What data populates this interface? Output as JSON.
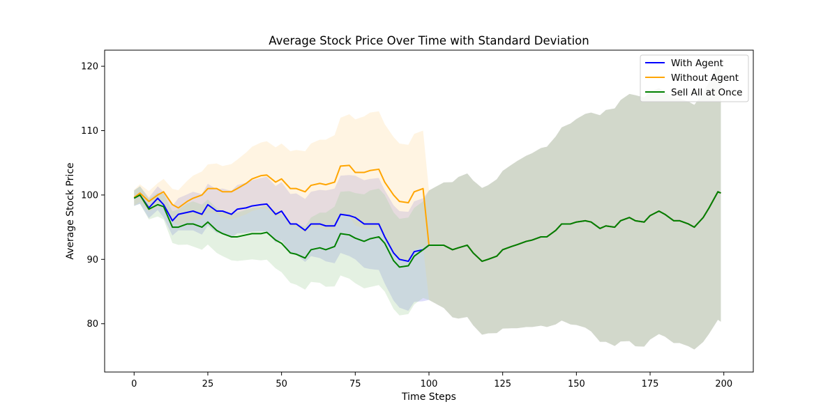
{
  "chart_data": {
    "type": "line",
    "title": "Average Stock Price Over Time with Standard Deviation",
    "xlabel": "Time Steps",
    "ylabel": "Average Stock Price",
    "xlim": [
      -10,
      210
    ],
    "ylim": [
      72.5,
      122.5
    ],
    "xticks": [
      0,
      25,
      50,
      75,
      100,
      125,
      150,
      175,
      200
    ],
    "yticks": [
      80,
      90,
      100,
      110,
      120
    ],
    "grid": false,
    "legend_position": "upper right",
    "series": [
      {
        "name": "With Agent",
        "color": "#0000ff",
        "band_color": "#8a8af0",
        "points": [
          [
            0,
            99.5
          ],
          [
            2,
            100
          ],
          [
            5,
            98
          ],
          [
            8,
            99.5
          ],
          [
            10,
            98.5
          ],
          [
            13,
            96
          ],
          [
            15,
            97
          ],
          [
            20,
            97.5
          ],
          [
            23,
            97
          ],
          [
            25,
            98.5
          ],
          [
            28,
            97.5
          ],
          [
            30,
            97.5
          ],
          [
            33,
            97
          ],
          [
            35,
            97.8
          ],
          [
            38,
            98
          ],
          [
            40,
            98.3
          ],
          [
            43,
            98.5
          ],
          [
            45,
            98.6
          ],
          [
            48,
            97
          ],
          [
            50,
            97.5
          ],
          [
            53,
            95.5
          ],
          [
            55,
            95.5
          ],
          [
            58,
            94.5
          ],
          [
            60,
            95.5
          ],
          [
            63,
            95.5
          ],
          [
            65,
            95.2
          ],
          [
            68,
            95.2
          ],
          [
            70,
            97
          ],
          [
            73,
            96.8
          ],
          [
            75,
            96.5
          ],
          [
            78,
            95.5
          ],
          [
            80,
            95.5
          ],
          [
            83,
            95.5
          ],
          [
            85,
            93.5
          ],
          [
            88,
            91
          ],
          [
            90,
            90
          ],
          [
            93,
            89.7
          ],
          [
            95,
            91.2
          ],
          [
            98,
            91.5
          ],
          [
            100,
            92.2
          ],
          [
            103,
            92.2
          ],
          [
            105,
            92.2
          ],
          [
            108,
            91.5
          ],
          [
            110,
            91.8
          ],
          [
            113,
            92.2
          ],
          [
            115,
            91
          ],
          [
            118,
            89.7
          ],
          [
            120,
            90
          ],
          [
            123,
            90.5
          ],
          [
            125,
            91.5
          ],
          [
            128,
            92
          ],
          [
            130,
            92.3
          ],
          [
            133,
            92.8
          ],
          [
            135,
            93
          ],
          [
            138,
            93.5
          ],
          [
            140,
            93.5
          ],
          [
            143,
            94.5
          ],
          [
            145,
            95.5
          ],
          [
            148,
            95.5
          ],
          [
            150,
            95.8
          ],
          [
            153,
            96
          ],
          [
            155,
            95.8
          ],
          [
            158,
            94.8
          ],
          [
            160,
            95.2
          ],
          [
            163,
            95
          ],
          [
            165,
            96
          ],
          [
            168,
            96.5
          ],
          [
            170,
            96
          ],
          [
            173,
            95.8
          ],
          [
            175,
            96.8
          ],
          [
            178,
            97.5
          ],
          [
            180,
            97
          ],
          [
            183,
            96
          ],
          [
            185,
            96
          ],
          [
            188,
            95.5
          ],
          [
            190,
            95
          ],
          [
            193,
            96.5
          ],
          [
            195,
            98
          ],
          [
            198,
            100.5
          ],
          [
            199,
            100.3
          ]
        ],
        "std": [
          [
            0,
            1.2
          ],
          [
            10,
            2
          ],
          [
            20,
            3
          ],
          [
            30,
            3.5
          ],
          [
            40,
            4
          ],
          [
            50,
            4.5
          ],
          [
            60,
            5
          ],
          [
            70,
            6
          ],
          [
            80,
            7
          ],
          [
            90,
            7.5
          ],
          [
            98,
            8
          ],
          [
            100,
            8.5
          ],
          [
            110,
            11
          ],
          [
            120,
            11.5
          ],
          [
            130,
            13
          ],
          [
            140,
            14
          ],
          [
            150,
            16
          ],
          [
            160,
            18
          ],
          [
            170,
            19.5
          ],
          [
            180,
            19
          ],
          [
            190,
            19
          ],
          [
            199,
            20
          ]
        ]
      },
      {
        "name": "Without Agent",
        "color": "#ffa500",
        "band_color": "#ffd9a0",
        "points": [
          [
            0,
            99.6
          ],
          [
            2,
            100.3
          ],
          [
            5,
            99
          ],
          [
            8,
            100
          ],
          [
            10,
            100.5
          ],
          [
            13,
            98.5
          ],
          [
            15,
            98
          ],
          [
            18,
            99
          ],
          [
            20,
            99.5
          ],
          [
            23,
            100
          ],
          [
            25,
            101
          ],
          [
            28,
            101
          ],
          [
            30,
            100.5
          ],
          [
            33,
            100.5
          ],
          [
            35,
            101
          ],
          [
            38,
            101.8
          ],
          [
            40,
            102.5
          ],
          [
            43,
            103
          ],
          [
            45,
            103.1
          ],
          [
            48,
            102
          ],
          [
            50,
            102.5
          ],
          [
            53,
            101
          ],
          [
            55,
            101
          ],
          [
            58,
            100.5
          ],
          [
            60,
            101.5
          ],
          [
            63,
            101.8
          ],
          [
            65,
            101.6
          ],
          [
            68,
            102
          ],
          [
            70,
            104.5
          ],
          [
            73,
            104.6
          ],
          [
            75,
            103.5
          ],
          [
            78,
            103.5
          ],
          [
            80,
            103.8
          ],
          [
            83,
            104
          ],
          [
            85,
            102
          ],
          [
            88,
            100
          ],
          [
            90,
            99
          ],
          [
            93,
            98.8
          ],
          [
            95,
            100.5
          ],
          [
            98,
            101
          ],
          [
            100,
            92.2
          ],
          [
            103,
            92.2
          ],
          [
            105,
            92.2
          ],
          [
            108,
            91.5
          ],
          [
            110,
            91.8
          ],
          [
            113,
            92.2
          ],
          [
            115,
            91
          ],
          [
            118,
            89.7
          ],
          [
            120,
            90
          ],
          [
            123,
            90.5
          ],
          [
            125,
            91.5
          ],
          [
            128,
            92
          ],
          [
            130,
            92.3
          ],
          [
            133,
            92.8
          ],
          [
            135,
            93
          ],
          [
            138,
            93.5
          ],
          [
            140,
            93.5
          ],
          [
            143,
            94.5
          ],
          [
            145,
            95.5
          ],
          [
            148,
            95.5
          ],
          [
            150,
            95.8
          ],
          [
            153,
            96
          ],
          [
            155,
            95.8
          ],
          [
            158,
            94.8
          ],
          [
            160,
            95.2
          ],
          [
            163,
            95
          ],
          [
            165,
            96
          ],
          [
            168,
            96.5
          ],
          [
            170,
            96
          ],
          [
            173,
            95.8
          ],
          [
            175,
            96.8
          ],
          [
            178,
            97.5
          ],
          [
            180,
            97
          ],
          [
            183,
            96
          ],
          [
            185,
            96
          ],
          [
            188,
            95.5
          ],
          [
            190,
            95
          ],
          [
            193,
            96.5
          ],
          [
            195,
            98
          ],
          [
            198,
            100.5
          ],
          [
            199,
            100.3
          ]
        ],
        "std": [
          [
            0,
            1.2
          ],
          [
            10,
            2
          ],
          [
            20,
            3.5
          ],
          [
            30,
            4
          ],
          [
            40,
            5
          ],
          [
            50,
            5.5
          ],
          [
            60,
            6.5
          ],
          [
            70,
            7.5
          ],
          [
            80,
            9
          ],
          [
            90,
            9
          ],
          [
            98,
            9
          ],
          [
            100,
            8.5
          ],
          [
            110,
            11
          ],
          [
            120,
            11.5
          ],
          [
            130,
            13
          ],
          [
            140,
            14
          ],
          [
            150,
            16
          ],
          [
            160,
            18
          ],
          [
            170,
            19.5
          ],
          [
            180,
            19
          ],
          [
            190,
            19
          ],
          [
            199,
            20
          ]
        ]
      },
      {
        "name": "Sell All at Once",
        "color": "#008000",
        "band_color": "#a6cf9f",
        "points": [
          [
            0,
            99.5
          ],
          [
            2,
            100
          ],
          [
            5,
            97.8
          ],
          [
            8,
            98.5
          ],
          [
            10,
            98.2
          ],
          [
            13,
            95
          ],
          [
            15,
            95
          ],
          [
            18,
            95.5
          ],
          [
            20,
            95.5
          ],
          [
            23,
            95
          ],
          [
            25,
            95.8
          ],
          [
            28,
            94.5
          ],
          [
            30,
            94
          ],
          [
            33,
            93.5
          ],
          [
            35,
            93.5
          ],
          [
            38,
            93.8
          ],
          [
            40,
            94
          ],
          [
            43,
            94
          ],
          [
            45,
            94.2
          ],
          [
            48,
            93
          ],
          [
            50,
            92.5
          ],
          [
            53,
            91
          ],
          [
            55,
            90.8
          ],
          [
            58,
            90.2
          ],
          [
            60,
            91.5
          ],
          [
            63,
            91.8
          ],
          [
            65,
            91.5
          ],
          [
            68,
            92
          ],
          [
            70,
            94
          ],
          [
            73,
            93.8
          ],
          [
            75,
            93.3
          ],
          [
            78,
            92.8
          ],
          [
            80,
            93.2
          ],
          [
            83,
            93.5
          ],
          [
            85,
            92.5
          ],
          [
            88,
            89.8
          ],
          [
            90,
            88.8
          ],
          [
            93,
            89
          ],
          [
            95,
            90.5
          ],
          [
            98,
            91.5
          ],
          [
            100,
            92.2
          ],
          [
            103,
            92.2
          ],
          [
            105,
            92.2
          ],
          [
            108,
            91.5
          ],
          [
            110,
            91.8
          ],
          [
            113,
            92.2
          ],
          [
            115,
            91
          ],
          [
            118,
            89.7
          ],
          [
            120,
            90
          ],
          [
            123,
            90.5
          ],
          [
            125,
            91.5
          ],
          [
            128,
            92
          ],
          [
            130,
            92.3
          ],
          [
            133,
            92.8
          ],
          [
            135,
            93
          ],
          [
            138,
            93.5
          ],
          [
            140,
            93.5
          ],
          [
            143,
            94.5
          ],
          [
            145,
            95.5
          ],
          [
            148,
            95.5
          ],
          [
            150,
            95.8
          ],
          [
            153,
            96
          ],
          [
            155,
            95.8
          ],
          [
            158,
            94.8
          ],
          [
            160,
            95.2
          ],
          [
            163,
            95
          ],
          [
            165,
            96
          ],
          [
            168,
            96.5
          ],
          [
            170,
            96
          ],
          [
            173,
            95.8
          ],
          [
            175,
            96.8
          ],
          [
            178,
            97.5
          ],
          [
            180,
            97
          ],
          [
            183,
            96
          ],
          [
            185,
            96
          ],
          [
            188,
            95.5
          ],
          [
            190,
            95
          ],
          [
            193,
            96.5
          ],
          [
            195,
            98
          ],
          [
            198,
            100.5
          ],
          [
            199,
            100.3
          ]
        ],
        "std": [
          [
            0,
            1.2
          ],
          [
            10,
            2
          ],
          [
            20,
            3.5
          ],
          [
            30,
            3.5
          ],
          [
            40,
            4
          ],
          [
            50,
            4.5
          ],
          [
            60,
            5
          ],
          [
            70,
            6.5
          ],
          [
            80,
            7.5
          ],
          [
            90,
            7.5
          ],
          [
            98,
            7.5
          ],
          [
            100,
            8.5
          ],
          [
            110,
            11
          ],
          [
            120,
            11.5
          ],
          [
            130,
            13
          ],
          [
            140,
            14
          ],
          [
            150,
            16
          ],
          [
            160,
            18
          ],
          [
            170,
            19.5
          ],
          [
            180,
            19
          ],
          [
            190,
            19
          ],
          [
            199,
            20
          ]
        ]
      }
    ]
  }
}
